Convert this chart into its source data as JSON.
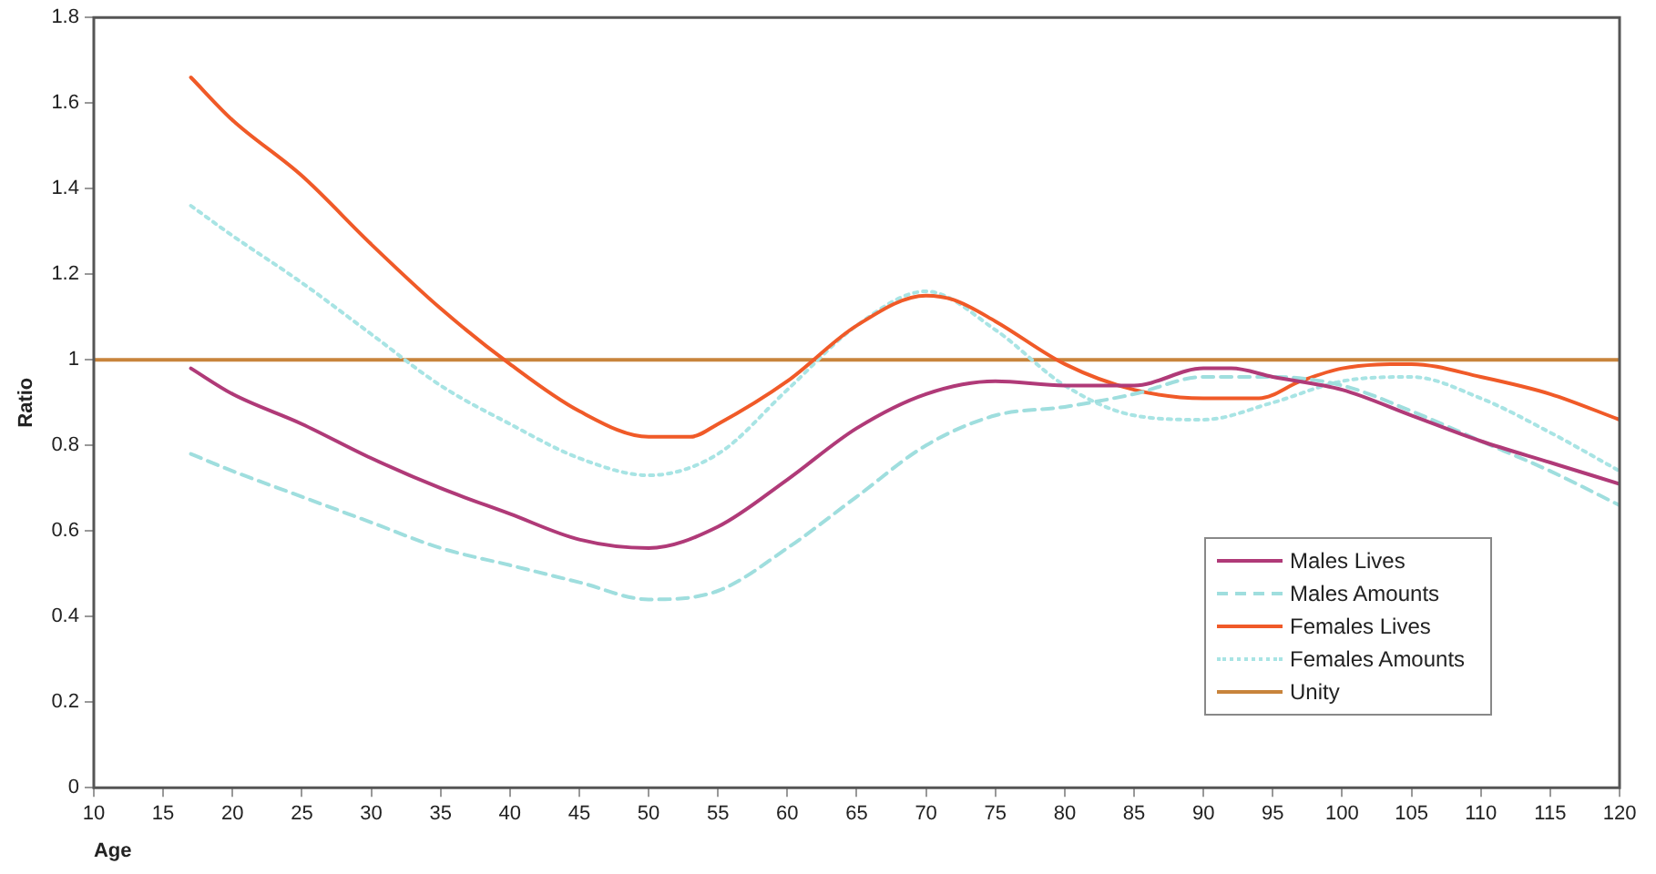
{
  "chart_data": {
    "type": "line",
    "xlabel": "Age",
    "ylabel": "Ratio",
    "xlim": [
      10,
      120
    ],
    "xticks": [
      10,
      15,
      20,
      25,
      30,
      35,
      40,
      45,
      50,
      55,
      60,
      65,
      70,
      75,
      80,
      85,
      90,
      95,
      100,
      105,
      110,
      115,
      120
    ],
    "ylim": [
      0,
      1.8
    ],
    "yticks": [
      0,
      0.2,
      0.4,
      0.6,
      0.8,
      1,
      1.2,
      1.4,
      1.6,
      1.8
    ],
    "grid": false,
    "legend": "bottom right",
    "marker": "none",
    "series": [
      {
        "name": "Males Lives",
        "color": "#b03a78",
        "line_style": "solid",
        "x": [
          17,
          20,
          25,
          30,
          35,
          40,
          45,
          50,
          55,
          60,
          65,
          70,
          75,
          80,
          85,
          90,
          92,
          95,
          100,
          105,
          110,
          115,
          120
        ],
        "values": [
          0.98,
          0.92,
          0.85,
          0.77,
          0.7,
          0.64,
          0.58,
          0.56,
          0.61,
          0.72,
          0.84,
          0.92,
          0.95,
          0.94,
          0.94,
          0.98,
          0.98,
          0.96,
          0.93,
          0.87,
          0.81,
          0.76,
          0.71
        ]
      },
      {
        "name": "Males Amounts",
        "color": "#9fdede",
        "line_style": "dashed",
        "x": [
          17,
          20,
          25,
          30,
          35,
          40,
          45,
          50,
          55,
          60,
          65,
          70,
          75,
          80,
          85,
          90,
          95,
          100,
          105,
          110,
          115,
          120
        ],
        "values": [
          0.78,
          0.74,
          0.68,
          0.62,
          0.56,
          0.52,
          0.48,
          0.44,
          0.46,
          0.56,
          0.68,
          0.8,
          0.87,
          0.89,
          0.92,
          0.96,
          0.96,
          0.94,
          0.88,
          0.81,
          0.74,
          0.66
        ]
      },
      {
        "name": "Females Lives",
        "color": "#f05a28",
        "line_style": "solid",
        "x": [
          17,
          20,
          25,
          30,
          35,
          40,
          45,
          50,
          53,
          55,
          60,
          65,
          70,
          72,
          75,
          80,
          85,
          90,
          94,
          97,
          100,
          105,
          110,
          115,
          120
        ],
        "values": [
          1.66,
          1.56,
          1.43,
          1.27,
          1.12,
          0.99,
          0.88,
          0.82,
          0.82,
          0.85,
          0.95,
          1.08,
          1.15,
          1.14,
          1.09,
          0.99,
          0.93,
          0.91,
          0.91,
          0.95,
          0.98,
          0.99,
          0.96,
          0.92,
          0.86
        ]
      },
      {
        "name": "Females Amounts",
        "color": "#a8e4e4",
        "line_style": "dotted",
        "x": [
          17,
          20,
          25,
          30,
          35,
          40,
          45,
          50,
          55,
          60,
          65,
          70,
          75,
          80,
          85,
          90,
          95,
          100,
          105,
          110,
          115,
          120
        ],
        "values": [
          1.36,
          1.29,
          1.18,
          1.06,
          0.94,
          0.85,
          0.77,
          0.73,
          0.78,
          0.93,
          1.08,
          1.16,
          1.07,
          0.94,
          0.87,
          0.86,
          0.9,
          0.95,
          0.96,
          0.91,
          0.83,
          0.74
        ]
      },
      {
        "name": "Unity",
        "color": "#c8843c",
        "line_style": "solid",
        "x": [
          10,
          120
        ],
        "values": [
          1,
          1
        ]
      }
    ]
  }
}
